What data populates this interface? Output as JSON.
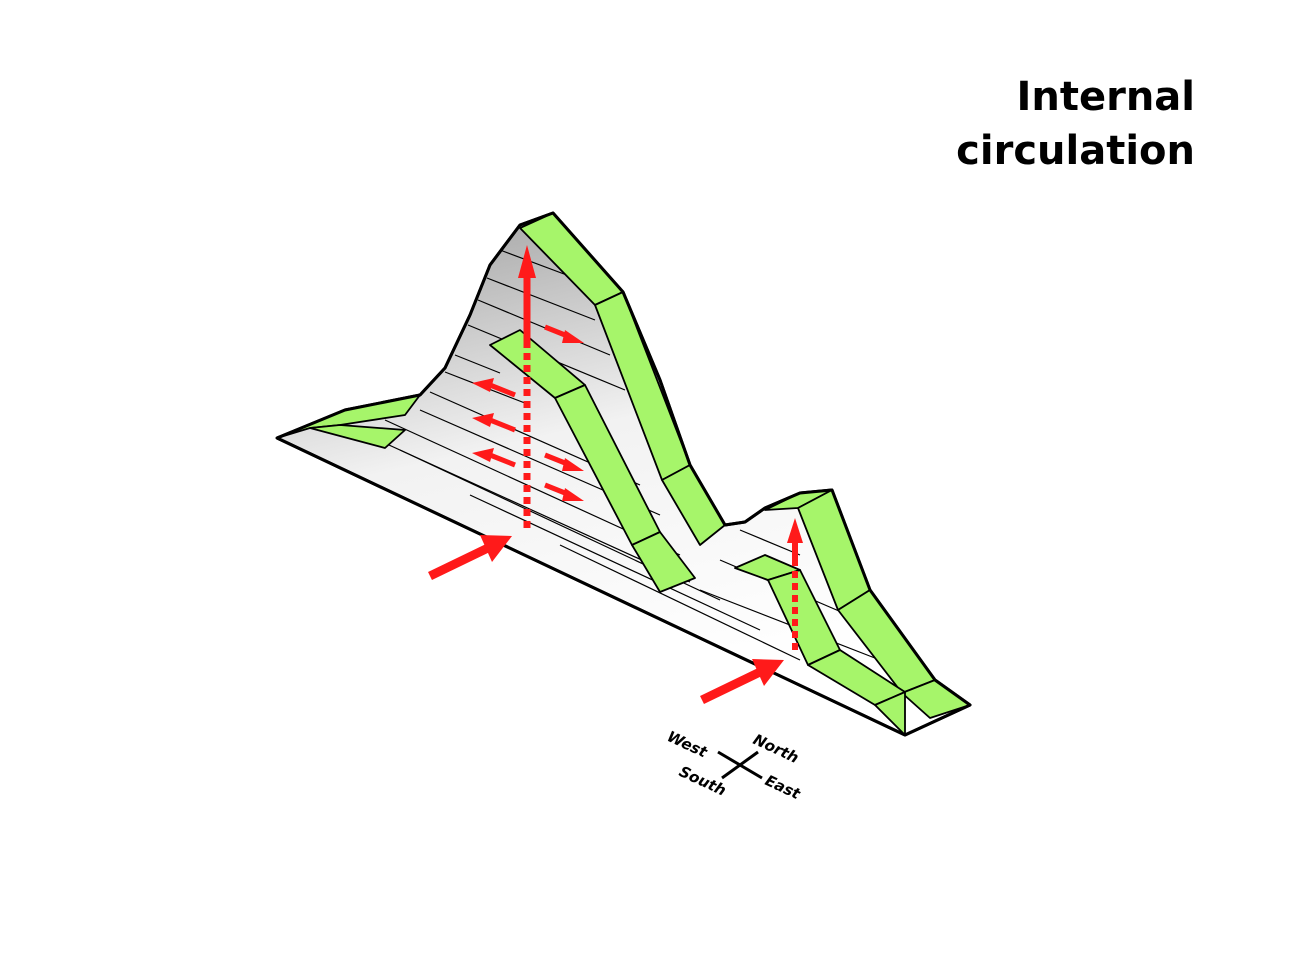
{
  "title": {
    "line1": "Internal",
    "line2": "circulation"
  },
  "compass": {
    "west": "West",
    "north": "North",
    "south": "South",
    "east": "East"
  },
  "colors": {
    "ridge": "#a6f56a",
    "arrow": "#ff1a1a",
    "surface": "#e6e6e6",
    "outline": "#000000"
  }
}
